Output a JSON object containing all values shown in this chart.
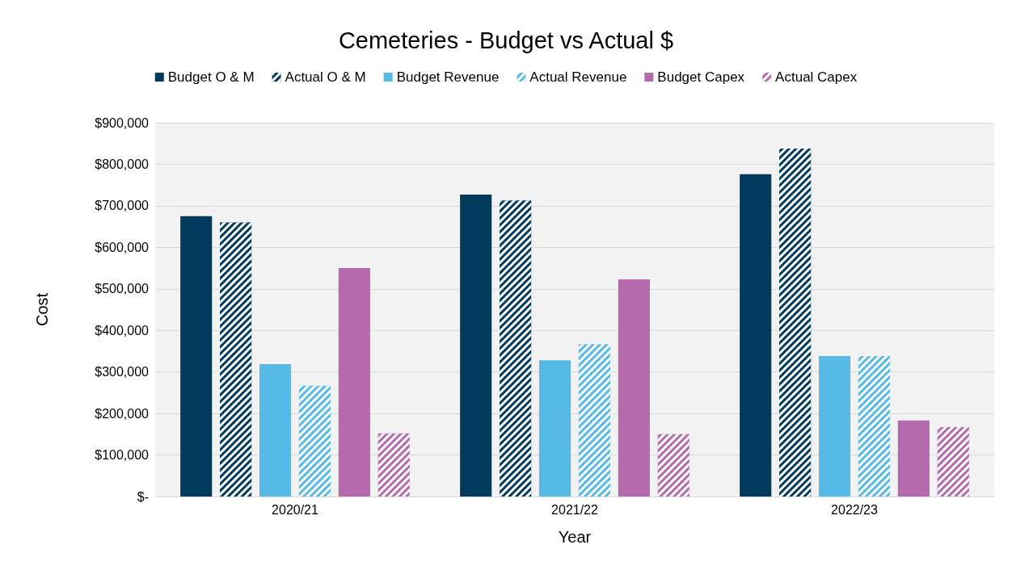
{
  "chart_data": {
    "type": "bar",
    "title": "Cemeteries - Budget vs Actual $",
    "xlabel": "Year",
    "ylabel": "Cost",
    "categories": [
      "2020/21",
      "2021/22",
      "2022/23"
    ],
    "series": [
      {
        "name": "Budget O & M",
        "color": "#003a5c",
        "values": [
          675000,
          727000,
          776000
        ]
      },
      {
        "name": "Actual O & M",
        "color": "#003a5c",
        "values": [
          660000,
          713000,
          838000
        ]
      },
      {
        "name": "Budget Revenue",
        "color": "#56b9e6",
        "values": [
          319000,
          328000,
          338000
        ]
      },
      {
        "name": "Actual Revenue",
        "color": "#56b9e6",
        "values": [
          267000,
          367000,
          338000
        ]
      },
      {
        "name": "Budget Capex",
        "color": "#b46aad",
        "values": [
          550000,
          523000,
          183000
        ]
      },
      {
        "name": "Actual Capex",
        "color": "#b46aad",
        "values": [
          152000,
          150000,
          167000
        ]
      }
    ],
    "ylim": [
      0,
      900000
    ],
    "yticks": [
      {
        "value": 0,
        "label": "$-"
      },
      {
        "value": 100000,
        "label": "$100,000"
      },
      {
        "value": 200000,
        "label": "$200,000"
      },
      {
        "value": 300000,
        "label": "$300,000"
      },
      {
        "value": 400000,
        "label": "$400,000"
      },
      {
        "value": 500000,
        "label": "$500,000"
      },
      {
        "value": 600000,
        "label": "$600,000"
      },
      {
        "value": 700000,
        "label": "$700,000"
      },
      {
        "value": 800000,
        "label": "$800,000"
      },
      {
        "value": 900000,
        "label": "$900,000"
      }
    ],
    "grid": "y",
    "legend": "top"
  }
}
